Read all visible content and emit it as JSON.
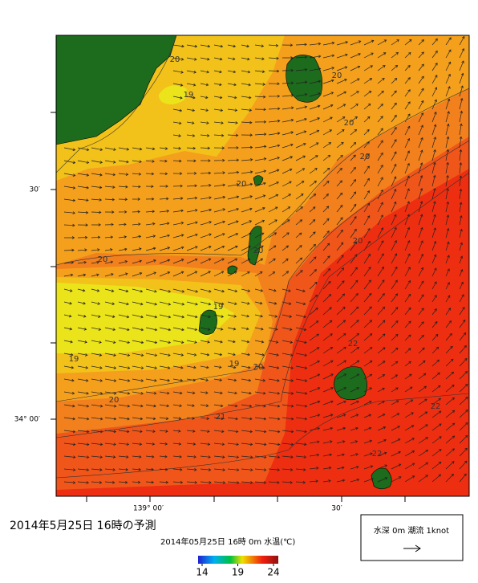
{
  "map": {
    "lat_labels": [
      "30′",
      "34° 00′"
    ],
    "lon_labels": [
      "139° 00′",
      "30′"
    ],
    "contour_labels": [
      "20",
      "19",
      "20",
      "20",
      "20",
      "20",
      "20",
      "20",
      "20",
      "19",
      "19",
      "19",
      "20",
      "20",
      "21",
      "22",
      "22",
      "22"
    ]
  },
  "caption": {
    "title": "2014年5月25日 16時の予測",
    "subtitle": "2014年05月25日 16時 0m 水温(℃)"
  },
  "colorbar": {
    "range": [
      14,
      24
    ],
    "ticks": [
      14,
      19,
      24
    ]
  },
  "legend": {
    "label": "水深 0m 潮流 1knot"
  }
}
